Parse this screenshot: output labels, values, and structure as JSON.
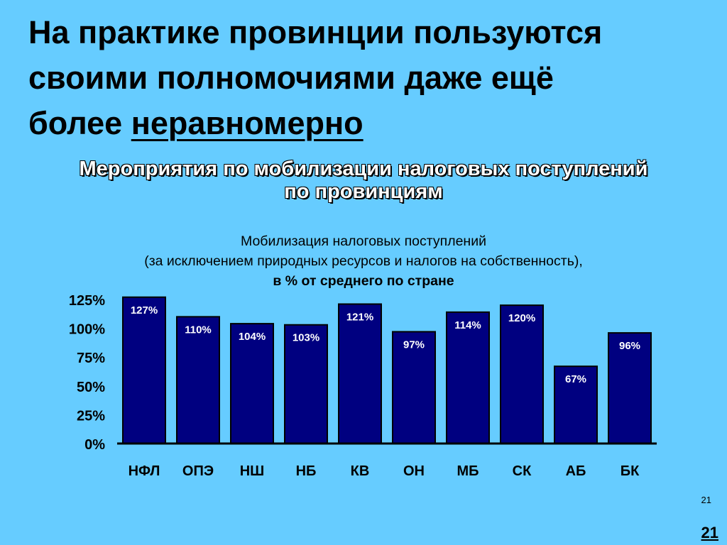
{
  "slide": {
    "title_lines": [
      "На практике провинции пользуются",
      "своими полномочиями даже ещё"
    ],
    "title_last_prefix": "более ",
    "title_emphasis": "неравномерно",
    "section_heading_lines": [
      "Мероприятия по мобилизации налоговых поступлений",
      "по провинциям"
    ],
    "page_number_small": "21",
    "page_number_large": "21"
  },
  "chart_data": {
    "type": "bar",
    "title": [
      "Мобилизация налоговых поступлений",
      "(за исключением природных ресурсов и налогов на собственность),",
      "в % от среднего по стране"
    ],
    "categories": [
      "НФЛ",
      "ОПЭ",
      "НШ",
      "НБ",
      "КВ",
      "ОН",
      "МБ",
      "СК",
      "АБ",
      "БК"
    ],
    "values": [
      127,
      110,
      104,
      103,
      121,
      97,
      114,
      120,
      67,
      96
    ],
    "data_labels": [
      "127%",
      "110%",
      "104%",
      "103%",
      "121%",
      "97%",
      "114%",
      "120%",
      "67%",
      "96%"
    ],
    "y_ticks": [
      "0%",
      "25%",
      "50%",
      "75%",
      "100%",
      "125%"
    ],
    "y_tick_values": [
      0,
      25,
      50,
      75,
      100,
      125
    ],
    "ylim": [
      0,
      125
    ],
    "xlabel": "",
    "ylabel": "",
    "legend": "none",
    "grid": false,
    "colors": {
      "bar": "#000080",
      "bar_border": "#000000",
      "label": "#ffffff"
    }
  }
}
